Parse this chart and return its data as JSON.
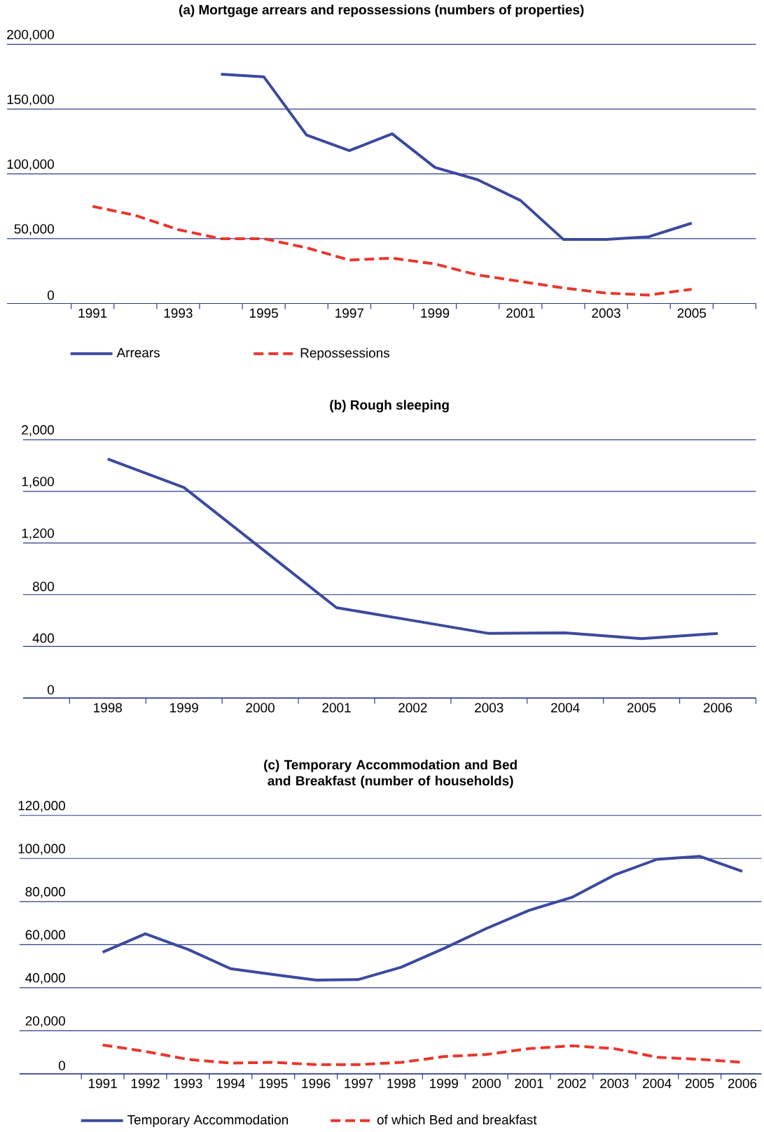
{
  "chart_data": [
    {
      "type": "line",
      "title": "(a) Mortgage arrears and repossessions (numbers of properties)",
      "grid": "y",
      "legend": "bottom",
      "xlim": [
        1989,
        2006.5
      ],
      "xticks": [
        1991,
        1993,
        1995,
        1997,
        1999,
        2001,
        2003,
        2005,
        {
          "value": 1990.5,
          "label": null
        },
        {
          "value": 1991.5,
          "label": null
        },
        {
          "value": 1992.5,
          "label": null
        },
        {
          "value": 1993.5,
          "label": null
        },
        {
          "value": 1994.5,
          "label": null
        },
        {
          "value": 1995.5,
          "label": null
        },
        {
          "value": 1996.5,
          "label": null
        },
        {
          "value": 1997.5,
          "label": null
        },
        {
          "value": 1998.5,
          "label": null
        },
        {
          "value": 1999.5,
          "label": null
        },
        {
          "value": 2000.5,
          "label": null
        },
        {
          "value": 2001.5,
          "label": null
        },
        {
          "value": 2002.5,
          "label": null
        },
        {
          "value": 2003.5,
          "label": null
        },
        {
          "value": 2004.5,
          "label": null
        },
        {
          "value": 2005.5,
          "label": null
        },
        {
          "value": 2006.5,
          "label": null
        }
      ],
      "ylim": [
        0,
        200000
      ],
      "yticks": [
        0,
        {
          "value": 50000,
          "label": "50,000"
        },
        {
          "value": 100000,
          "label": "100,000"
        },
        {
          "value": 150000,
          "label": "150,000"
        },
        {
          "value": 200000,
          "label": "200,000"
        }
      ],
      "series": [
        {
          "name": "Arrears",
          "color": "#3b4a9e",
          "line_style": "solid",
          "x": [
            1994,
            1995,
            1996,
            1997,
            1998,
            1999,
            2000,
            2001,
            2002,
            2003,
            2004,
            2005
          ],
          "values": [
            177000,
            175000,
            130000,
            118000,
            131000,
            105000,
            95500,
            79500,
            49500,
            49500,
            51500,
            62000
          ]
        },
        {
          "name": "Repossessions",
          "color": "#e8372c",
          "line_style": "dashed",
          "x": [
            1991,
            1992,
            1993,
            1994,
            1995,
            1996,
            1997,
            1998,
            1999,
            2000,
            2001,
            2002,
            2003,
            2004,
            2005
          ],
          "values": [
            75000,
            68000,
            57000,
            50000,
            50000,
            43000,
            33500,
            35000,
            30500,
            22000,
            17000,
            12000,
            8000,
            6500,
            11000
          ]
        }
      ]
    },
    {
      "type": "line",
      "title": "(b) Rough sleeping",
      "grid": "y",
      "categories": [
        "1998",
        "1999",
        "2000",
        "2001",
        "2002",
        "2003",
        "2004",
        "2005",
        "2006"
      ],
      "ylim": [
        0,
        2000
      ],
      "yticks": [
        0,
        400,
        800,
        {
          "value": 1200,
          "label": "1,200"
        },
        {
          "value": 1600,
          "label": "1,600"
        },
        {
          "value": 2000,
          "label": "2,000"
        }
      ],
      "color": "#3b4a9e",
      "values": [
        1850,
        1630,
        1165,
        700,
        600,
        500,
        505,
        460,
        500
      ]
    },
    {
      "type": "line",
      "title": "(c) Temporary Accommodation and Bed and Breakfast (number of households)",
      "grid": "y",
      "legend": "bottom",
      "categories": [
        "1991",
        "1992",
        "1993",
        "1994",
        "1995",
        "1996",
        "1997",
        "1998",
        "1999",
        "2000",
        "2001",
        "2002",
        "2003",
        "2004",
        "2005",
        "2006"
      ],
      "ylim": [
        0,
        120000
      ],
      "yticks": [
        0,
        {
          "value": 20000,
          "label": "20,000"
        },
        {
          "value": 40000,
          "label": "40,000"
        },
        {
          "value": 60000,
          "label": "60,000"
        },
        {
          "value": 80000,
          "label": "80,000"
        },
        {
          "value": 100000,
          "label": "100,000"
        },
        {
          "value": 120000,
          "label": "120,000"
        }
      ],
      "series": [
        {
          "name": "Temporary Accommodation",
          "color": "#3b4a9e",
          "line_style": "solid",
          "values": [
            56500,
            65000,
            57800,
            48800,
            46100,
            43500,
            43800,
            49500,
            58200,
            67500,
            75900,
            81900,
            92300,
            99600,
            101000,
            94000
          ]
        },
        {
          "name": "of which Bed and breakfast",
          "color": "#e8372c",
          "line_style": "dashed",
          "values": [
            13400,
            10400,
            6700,
            5000,
            5300,
            4300,
            4300,
            5300,
            8000,
            9000,
            11700,
            13000,
            11700,
            7700,
            6700,
            5300
          ]
        }
      ]
    }
  ]
}
